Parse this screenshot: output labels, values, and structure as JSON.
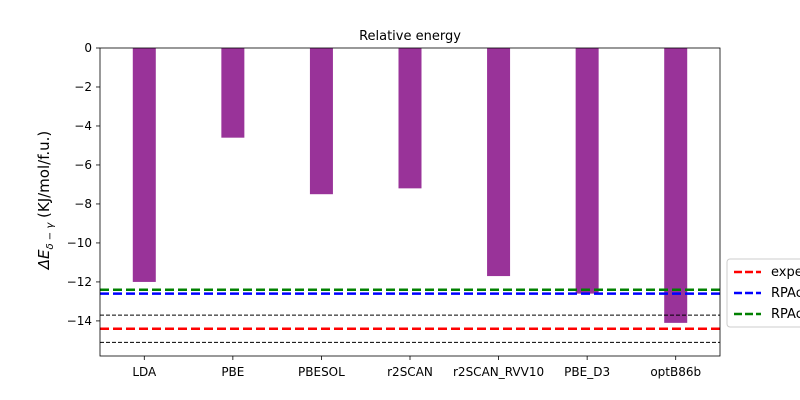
{
  "chart_data": {
    "type": "bar",
    "title": "Relative energy",
    "xlabel": "",
    "ylabel": "ΔE",
    "ylabel_sub": "δ − γ",
    "ylabel_unit": " (KJ/mol/f.u.)",
    "ylim": [
      -15.8,
      0
    ],
    "yticks": [
      0,
      -2,
      -4,
      -6,
      -8,
      -10,
      -12,
      -14
    ],
    "ytick_labels": [
      "0",
      "−2",
      "−4",
      "−6",
      "−8",
      "−10",
      "−12",
      "−14"
    ],
    "categories": [
      "LDA",
      "PBE",
      "PBESOL",
      "r2SCAN",
      "r2SCAN_RVV10",
      "PBE_D3",
      "optB86b"
    ],
    "values": [
      -12.0,
      -4.6,
      -7.5,
      -7.2,
      -11.7,
      -12.6,
      -14.1
    ],
    "bar_color": "#993399",
    "reference_lines": [
      {
        "label": "expe",
        "value": -14.4,
        "color": "#ff0000",
        "style": "dashed",
        "in_legend": true
      },
      {
        "label": "RPAc",
        "value": -12.6,
        "color": "#0000ff",
        "style": "dashed",
        "in_legend": true
      },
      {
        "label": "RPAc",
        "value": -12.4,
        "color": "#008000",
        "style": "dashed",
        "in_legend": true
      },
      {
        "label": "",
        "value": -13.7,
        "color": "#000000",
        "style": "thin-dashed",
        "in_legend": false
      },
      {
        "label": "",
        "value": -15.1,
        "color": "#000000",
        "style": "thin-dashed",
        "in_legend": false
      }
    ],
    "grid": false,
    "legend_position": "right-outside"
  }
}
